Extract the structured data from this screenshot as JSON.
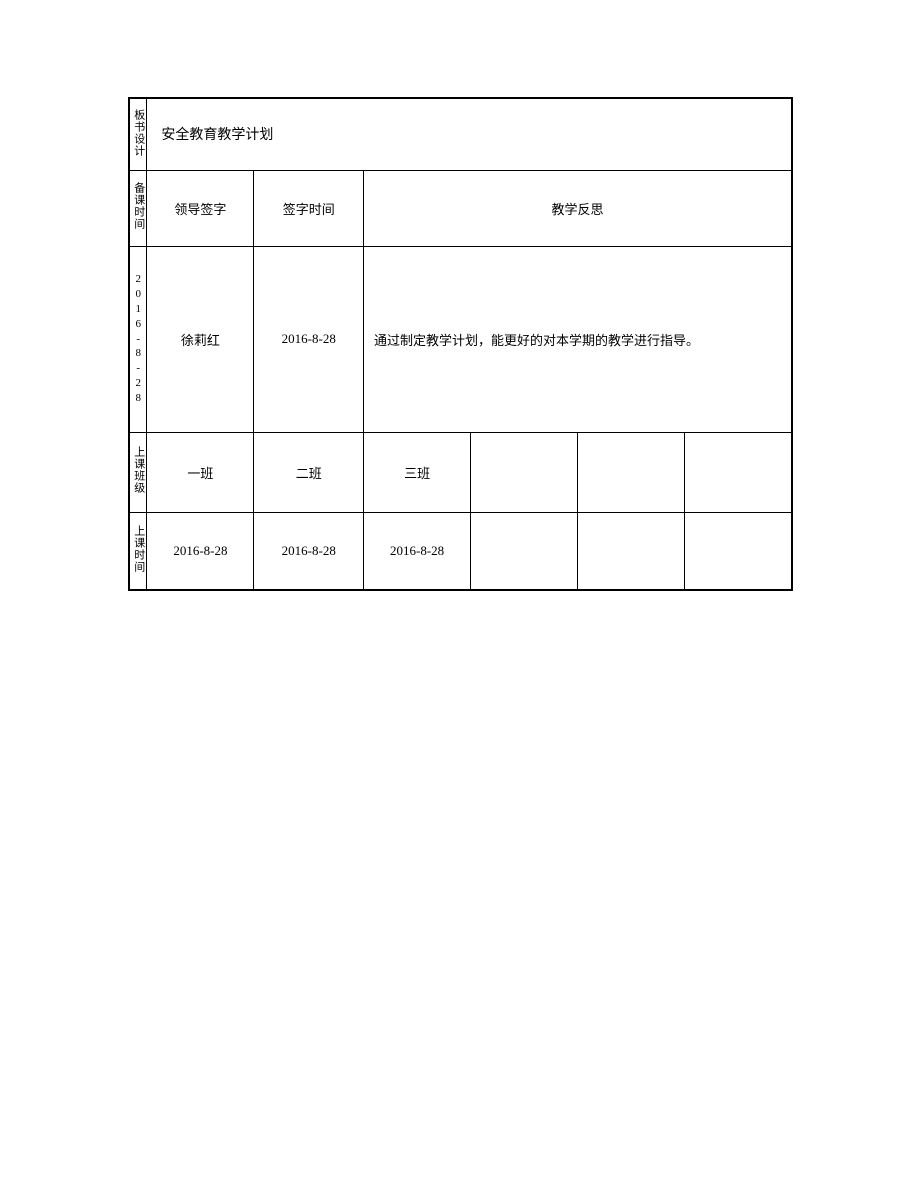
{
  "table": {
    "row1": {
      "label": "板书设计",
      "content": "安全教育教学计划"
    },
    "row2": {
      "label": "备课时间",
      "headers": {
        "leader_sign": "领导签字",
        "sign_time": "签字时间",
        "reflection": "教学反思"
      }
    },
    "row3": {
      "date_vertical": "2016-8-28",
      "leader_name": "徐莉红",
      "sign_date": "2016-8-28",
      "reflection_text": "通过制定教学计划，能更好的对本学期的教学进行指导。"
    },
    "row4": {
      "label": "上课班级",
      "classes": [
        "一班",
        "二班",
        "三班",
        "",
        "",
        ""
      ]
    },
    "row5": {
      "label": "上课时间",
      "dates": [
        "2016-8-28",
        "2016-8-28",
        "2016-8-28",
        "",
        "",
        ""
      ]
    }
  },
  "styling": {
    "border_color": "#000000",
    "background_color": "#ffffff",
    "text_color": "#000000",
    "font_family": "SimSun",
    "base_font_size": 13
  }
}
